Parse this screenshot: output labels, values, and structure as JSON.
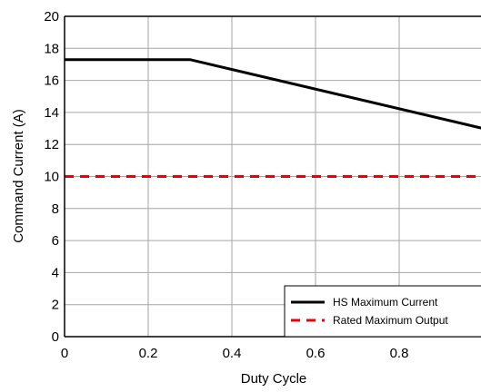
{
  "chart_data": {
    "type": "line",
    "title": "",
    "xlabel": "Duty Cycle",
    "ylabel": "Command Current (A)",
    "xlim": [
      0,
      1
    ],
    "ylim": [
      0,
      20
    ],
    "x_ticks": [
      "0",
      "0.2",
      "0.4",
      "0.6",
      "0.8"
    ],
    "y_ticks": [
      "0",
      "2",
      "4",
      "6",
      "8",
      "10",
      "12",
      "14",
      "16",
      "18",
      "20"
    ],
    "grid": true,
    "legend_position": "bottom-right",
    "series": [
      {
        "name": "HS Maximum Current",
        "color": "#000000",
        "style": "solid",
        "x": [
          0,
          0.3,
          1.0
        ],
        "y": [
          17.3,
          17.3,
          13.0
        ]
      },
      {
        "name": "Rated Maximum Output",
        "color": "#e8000b",
        "style": "dashed",
        "x": [
          0,
          1.0
        ],
        "y": [
          10,
          10
        ]
      }
    ]
  }
}
